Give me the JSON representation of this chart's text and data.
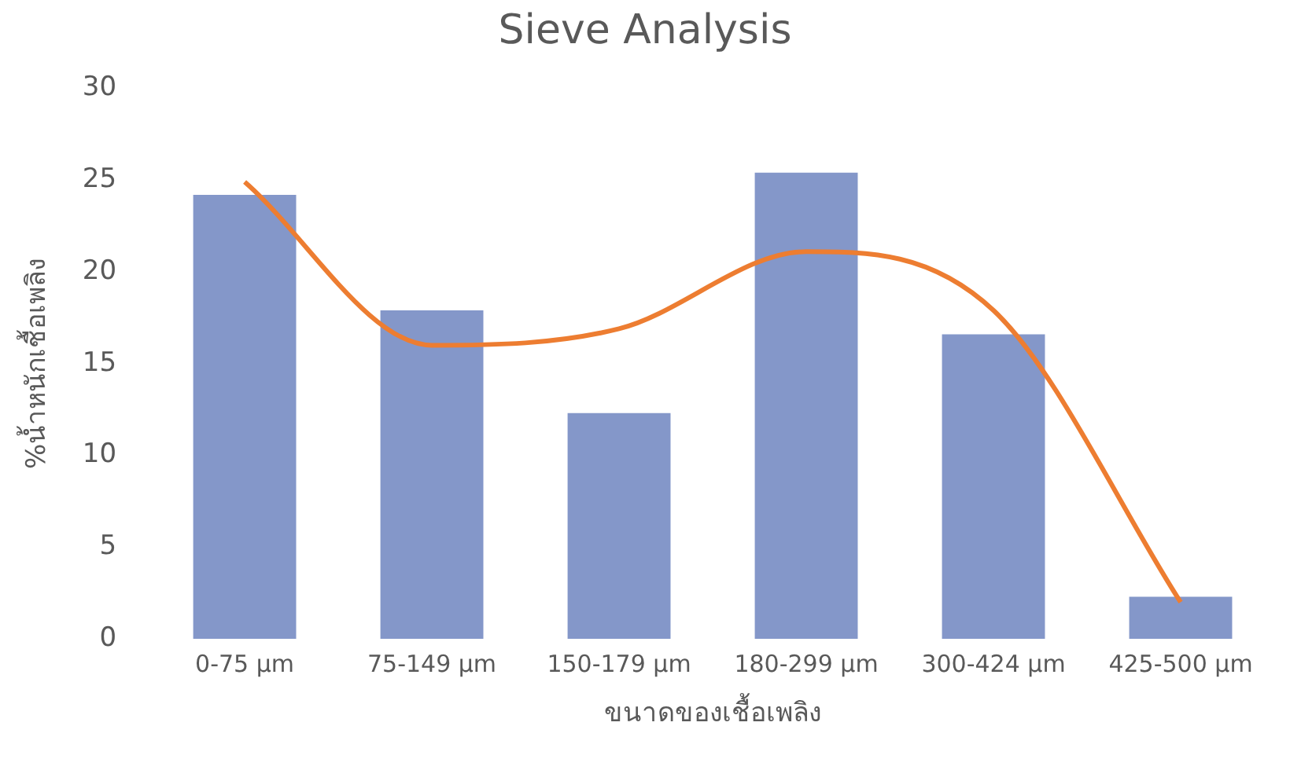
{
  "chart_data": {
    "type": "bar",
    "title": "Sieve Analysis",
    "xlabel": "ขนาดของเชื้อเพลิง",
    "ylabel": "%น้ำหนักเชื้อเพลิง",
    "categories": [
      "0-75 µm",
      "75-149 µm",
      "150-179 µm",
      "180-299 µm",
      "300-424 µm",
      "425-500 µm"
    ],
    "series": [
      {
        "color": "#8497c9",
        "values": [
          24.2,
          17.9,
          12.3,
          25.4,
          16.6,
          2.3
        ]
      },
      {
        "type": "line",
        "color": "#ed7d31",
        "values": [
          24.9,
          16.0,
          16.9,
          21.1,
          17.9,
          2.0
        ]
      }
    ],
    "ylim": [
      0,
      30
    ],
    "yticks": [
      0,
      5,
      10,
      15,
      20,
      25,
      30
    ],
    "grid": false,
    "legend": false,
    "marker": "none"
  }
}
